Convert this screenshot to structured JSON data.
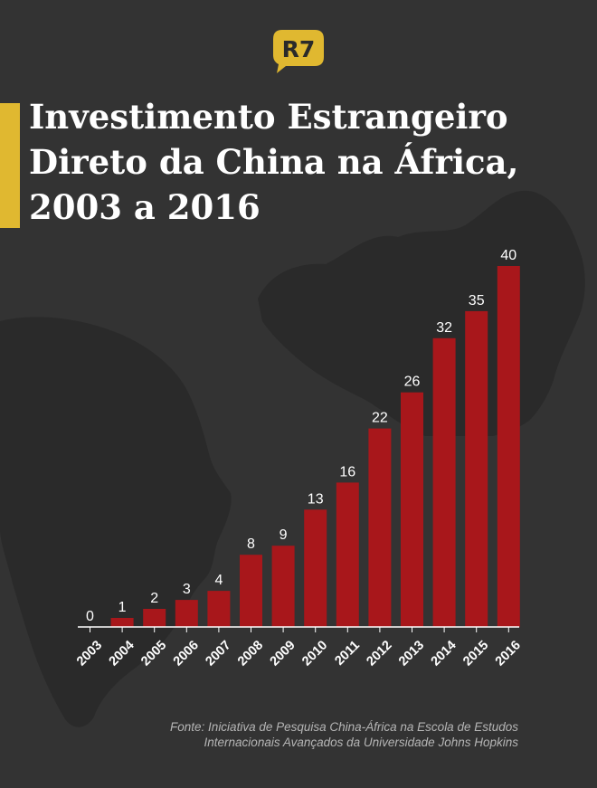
{
  "brand": {
    "logo_text": "R7",
    "accent_color": "#e0b830"
  },
  "title": "Investimento Estrangeiro Direto da China na África, 2003 a 2016",
  "source_lines": [
    "Fonte: Iniciativa de Pesquisa China-África na Escola de Estudos",
    "Internacionais Avançados da Universidade Johns Hopkins"
  ],
  "chart_data": {
    "type": "bar",
    "title": "Investimento Estrangeiro Direto da China na África, 2003 a 2016",
    "categories": [
      "2003",
      "2004",
      "2005",
      "2006",
      "2007",
      "2008",
      "2009",
      "2010",
      "2011",
      "2012",
      "2013",
      "2014",
      "2015",
      "2016"
    ],
    "values": [
      0,
      1,
      2,
      3,
      4,
      8,
      9,
      13,
      16,
      22,
      26,
      32,
      35,
      40
    ],
    "ylim": [
      0,
      40
    ],
    "grid": false,
    "legend": "none",
    "bar_color": "#a8171b",
    "label_color": "#ffffff",
    "background_color": "#333333"
  }
}
